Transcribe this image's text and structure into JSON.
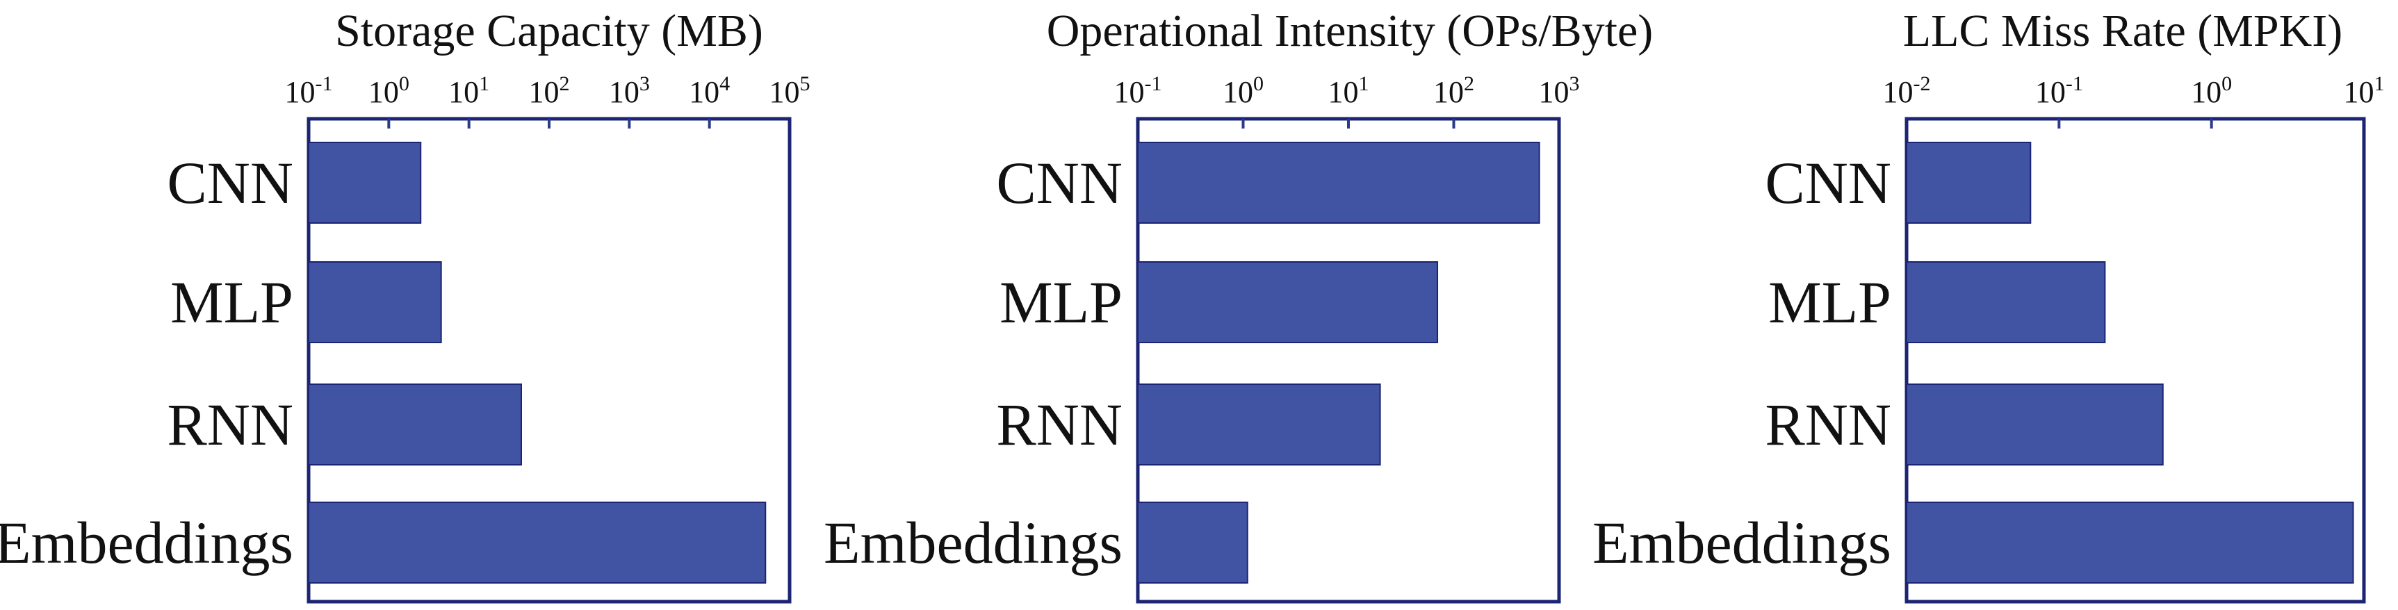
{
  "chart_data": [
    {
      "type": "bar",
      "orientation": "horizontal",
      "title": "Storage Capacity (MB)",
      "x_scale": "log",
      "xlim": [
        0.1,
        100000
      ],
      "tick_labels": [
        {
          "base": "10",
          "exp": "-1"
        },
        {
          "base": "10",
          "exp": "0"
        },
        {
          "base": "10",
          "exp": "1"
        },
        {
          "base": "10",
          "exp": "2"
        },
        {
          "base": "10",
          "exp": "3"
        },
        {
          "base": "10",
          "exp": "4"
        },
        {
          "base": "10",
          "exp": "5"
        }
      ],
      "categories": [
        "CNN",
        "MLP",
        "RNN",
        "Embeddings"
      ],
      "values": [
        2.5,
        4.5,
        45,
        50000
      ],
      "bar_color": "#4154a3",
      "frame_color": "#1c2474"
    },
    {
      "type": "bar",
      "orientation": "horizontal",
      "title": "Operational Intensity (OPs/Byte)",
      "x_scale": "log",
      "xlim": [
        0.1,
        1000
      ],
      "tick_labels": [
        {
          "base": "10",
          "exp": "-1"
        },
        {
          "base": "10",
          "exp": "0"
        },
        {
          "base": "10",
          "exp": "1"
        },
        {
          "base": "10",
          "exp": "2"
        },
        {
          "base": "10",
          "exp": "3"
        }
      ],
      "categories": [
        "CNN",
        "MLP",
        "RNN",
        "Embeddings"
      ],
      "values": [
        650,
        70,
        20,
        1.1
      ],
      "bar_color": "#4154a3",
      "frame_color": "#1c2474"
    },
    {
      "type": "bar",
      "orientation": "horizontal",
      "title": "LLC Miss Rate (MPKI)",
      "x_scale": "log",
      "xlim": [
        0.01,
        10
      ],
      "tick_labels": [
        {
          "base": "10",
          "exp": "-2"
        },
        {
          "base": "10",
          "exp": "-1"
        },
        {
          "base": "10",
          "exp": "0"
        },
        {
          "base": "10",
          "exp": "1"
        }
      ],
      "categories": [
        "CNN",
        "MLP",
        "RNN",
        "Embeddings"
      ],
      "values": [
        0.065,
        0.2,
        0.48,
        8.5
      ],
      "bar_color": "#4154a3",
      "frame_color": "#1c2474"
    }
  ]
}
